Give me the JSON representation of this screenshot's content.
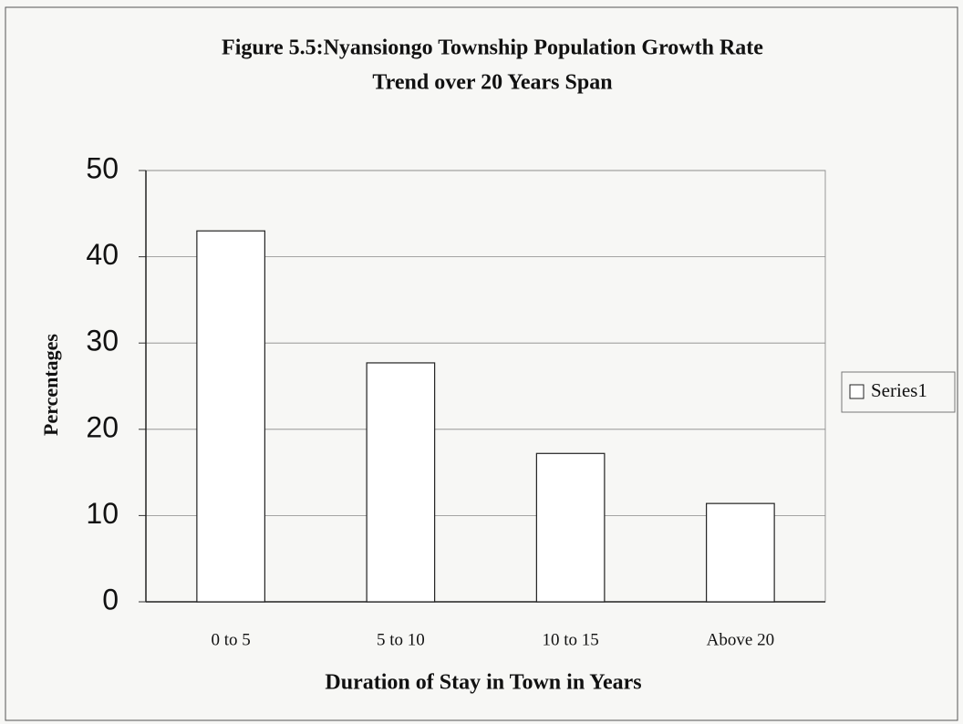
{
  "chart_data": {
    "type": "bar",
    "title": [
      "Figure 5.5:Nyansiongo Township Population Growth Rate",
      "Trend over 20 Years Span"
    ],
    "x_label": "Duration of Stay in Town in Years",
    "y_label": "Percentages",
    "categories": [
      "0 to 5",
      "5 to 10",
      "10 to 15",
      "Above 20"
    ],
    "series": [
      {
        "name": "Series1",
        "color": "#ffffff",
        "values": [
          43,
          27.7,
          17.2,
          11.4
        ]
      }
    ],
    "ylim": [
      0,
      50
    ],
    "yticks": [
      0,
      10,
      20,
      30,
      40,
      50
    ],
    "grid": true,
    "legend": "right"
  }
}
